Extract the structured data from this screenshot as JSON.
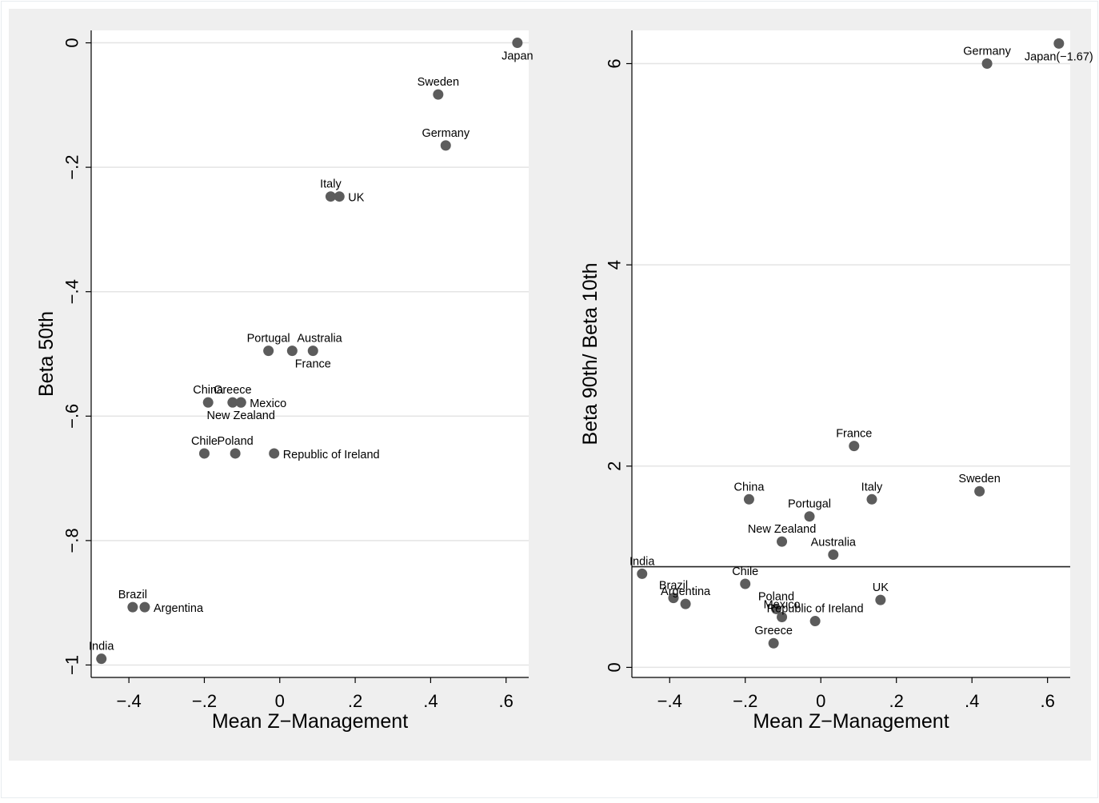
{
  "chart_data": [
    {
      "type": "scatter",
      "title": "",
      "xlabel": "Mean Z−Management",
      "ylabel": "Beta 50th",
      "xlim": [
        -0.5,
        0.66
      ],
      "ylim": [
        -1.02,
        0.02
      ],
      "xticks": [
        -0.4,
        -0.2,
        0,
        0.2,
        0.4,
        0.6
      ],
      "xtick_labels": [
        "−.4",
        "−.2",
        "0",
        ".2",
        ".4",
        ".6"
      ],
      "yticks": [
        0,
        -0.2,
        -0.4,
        -0.6,
        -0.8,
        -1
      ],
      "ytick_labels": [
        "0",
        "−.2",
        "−.4",
        "−.6",
        "−.8",
        "−1"
      ],
      "grid": true,
      "marker_color": "#5c5c5c",
      "points": [
        {
          "label": "Japan",
          "x": 0.63,
          "y": 0.0,
          "pos": "below"
        },
        {
          "label": "Sweden",
          "x": 0.42,
          "y": -0.083,
          "pos": "above"
        },
        {
          "label": "Germany",
          "x": 0.44,
          "y": -0.165,
          "pos": "above"
        },
        {
          "label": "Italy",
          "x": 0.135,
          "y": -0.247,
          "pos": "above"
        },
        {
          "label": "UK",
          "x": 0.158,
          "y": -0.247,
          "pos": "right"
        },
        {
          "label": "Portugal",
          "x": -0.03,
          "y": -0.495,
          "pos": "above"
        },
        {
          "label": "Australia",
          "x": 0.033,
          "y": -0.495,
          "pos": "above-right"
        },
        {
          "label": "France",
          "x": 0.088,
          "y": -0.495,
          "pos": "below"
        },
        {
          "label": "China",
          "x": -0.19,
          "y": -0.578,
          "pos": "above"
        },
        {
          "label": "Greece",
          "x": -0.125,
          "y": -0.578,
          "pos": "above"
        },
        {
          "label": "Mexico",
          "x": -0.103,
          "y": -0.578,
          "pos": "right"
        },
        {
          "label": "New Zealand",
          "x": -0.103,
          "y": -0.578,
          "pos": "below"
        },
        {
          "label": "Chile",
          "x": -0.2,
          "y": -0.66,
          "pos": "above"
        },
        {
          "label": "Poland",
          "x": -0.118,
          "y": -0.66,
          "pos": "above"
        },
        {
          "label": "Republic of Ireland",
          "x": -0.015,
          "y": -0.66,
          "pos": "right"
        },
        {
          "label": "Brazil",
          "x": -0.39,
          "y": -0.907,
          "pos": "above"
        },
        {
          "label": "Argentina",
          "x": -0.358,
          "y": -0.907,
          "pos": "right"
        },
        {
          "label": "India",
          "x": -0.473,
          "y": -0.99,
          "pos": "above"
        }
      ]
    },
    {
      "type": "scatter",
      "title": "",
      "xlabel": "Mean Z−Management",
      "ylabel": "Beta 90th/ Beta 10th",
      "xlim": [
        -0.5,
        0.66
      ],
      "ylim": [
        -0.1,
        6.33
      ],
      "xticks": [
        -0.4,
        -0.2,
        0,
        0.2,
        0.4,
        0.6
      ],
      "xtick_labels": [
        "−.4",
        "−.2",
        "0",
        ".2",
        ".4",
        ".6"
      ],
      "yticks": [
        0,
        2,
        4,
        6
      ],
      "ytick_labels": [
        "0",
        "2",
        "4",
        "6"
      ],
      "grid": true,
      "reference_line_y": 1,
      "marker_color": "#5c5c5c",
      "points": [
        {
          "label": "Germany",
          "x": 0.44,
          "y": 6.0,
          "pos": "above"
        },
        {
          "label": "Japan(−1.67)",
          "x": 0.63,
          "y": 6.2,
          "pos": "below"
        },
        {
          "label": "France",
          "x": 0.088,
          "y": 2.2,
          "pos": "above"
        },
        {
          "label": "Sweden",
          "x": 0.42,
          "y": 1.75,
          "pos": "above"
        },
        {
          "label": "China",
          "x": -0.19,
          "y": 1.67,
          "pos": "above"
        },
        {
          "label": "Italy",
          "x": 0.135,
          "y": 1.67,
          "pos": "above"
        },
        {
          "label": "Portugal",
          "x": -0.03,
          "y": 1.5,
          "pos": "above"
        },
        {
          "label": "New Zealand",
          "x": -0.103,
          "y": 1.25,
          "pos": "above"
        },
        {
          "label": "Australia",
          "x": 0.033,
          "y": 1.12,
          "pos": "above"
        },
        {
          "label": "India",
          "x": -0.473,
          "y": 0.93,
          "pos": "above"
        },
        {
          "label": "Chile",
          "x": -0.2,
          "y": 0.83,
          "pos": "above"
        },
        {
          "label": "Brazil",
          "x": -0.39,
          "y": 0.69,
          "pos": "above"
        },
        {
          "label": "Argentina",
          "x": -0.358,
          "y": 0.63,
          "pos": "above"
        },
        {
          "label": "UK",
          "x": 0.158,
          "y": 0.67,
          "pos": "above"
        },
        {
          "label": "Poland",
          "x": -0.118,
          "y": 0.58,
          "pos": "above"
        },
        {
          "label": "Mexico",
          "x": -0.103,
          "y": 0.5,
          "pos": "above"
        },
        {
          "label": "Republic of Ireland",
          "x": -0.015,
          "y": 0.46,
          "pos": "above"
        },
        {
          "label": "Greece",
          "x": -0.125,
          "y": 0.24,
          "pos": "above"
        }
      ]
    }
  ]
}
